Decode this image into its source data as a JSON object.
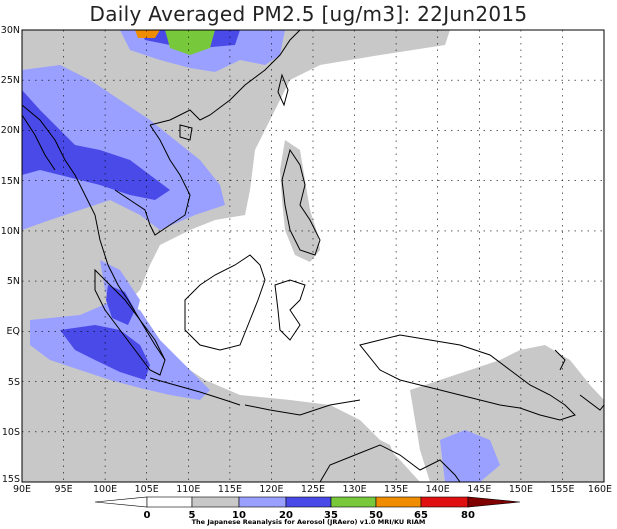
{
  "title": "Daily Averaged PM2.5 [ug/m3]: 22Jun2015",
  "x_ticks": [
    "90E",
    "95E",
    "100E",
    "105E",
    "110E",
    "115E",
    "120E",
    "125E",
    "130E",
    "135E",
    "140E",
    "145E",
    "150E",
    "155E",
    "160E"
  ],
  "y_ticks": [
    "30N",
    "25N",
    "20N",
    "15N",
    "10N",
    "5N",
    "EQ",
    "5S",
    "10S",
    "15S"
  ],
  "colorbar": {
    "levels": [
      "0",
      "5",
      "10",
      "20",
      "35",
      "50",
      "65",
      "80"
    ],
    "colors": [
      "#ffffff",
      "#c8c8c8",
      "#9aa0ff",
      "#4a4ae8",
      "#78c83c",
      "#f08c00",
      "#e01010",
      "#800000"
    ]
  },
  "credit": "The Japanese Reanalysis for Aerosol (JRAero) v1.0 MRI/KU RIAM",
  "colors": {
    "land_outline": "#000000",
    "grid": "#000000",
    "background": "#ffffff"
  }
}
